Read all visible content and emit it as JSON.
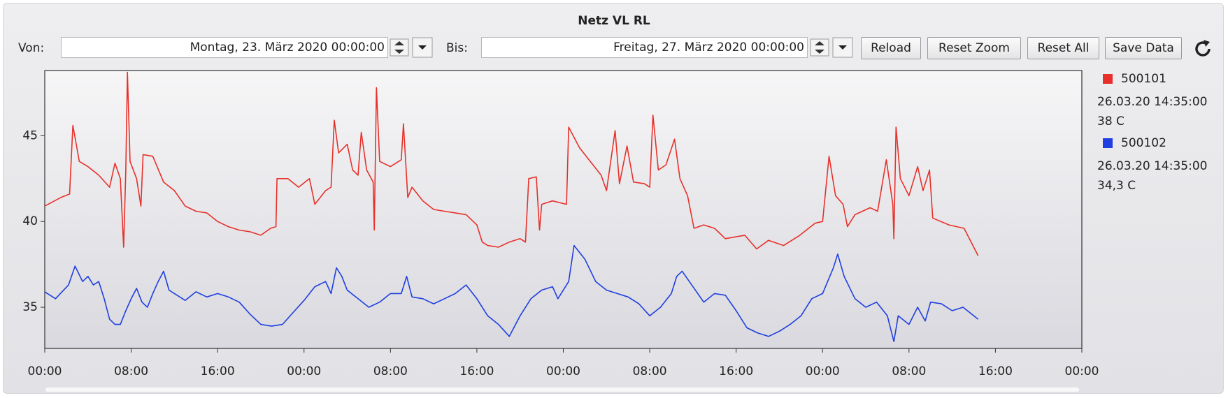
{
  "chart_data": {
    "type": "line",
    "title": "Netz VL RL",
    "xlim": [
      0,
      96
    ],
    "xticks": [
      {
        "value": 0,
        "label": "00:00"
      },
      {
        "value": 8,
        "label": "08:00"
      },
      {
        "value": 16,
        "label": "16:00"
      },
      {
        "value": 24,
        "label": "00:00"
      },
      {
        "value": 32,
        "label": "08:00"
      },
      {
        "value": 40,
        "label": "16:00"
      },
      {
        "value": 48,
        "label": "00:00"
      },
      {
        "value": 56,
        "label": "08:00"
      },
      {
        "value": 64,
        "label": "16:00"
      },
      {
        "value": 72,
        "label": "00:00"
      },
      {
        "value": 80,
        "label": "08:00"
      },
      {
        "value": 88,
        "label": "16:00"
      },
      {
        "value": 96,
        "label": "00:00"
      }
    ],
    "ylim": [
      32.6,
      48.8
    ],
    "yticks": [
      35,
      40,
      45
    ],
    "series": [
      {
        "name": "500101",
        "color": "#e8302a",
        "last_time": "26.03.20 14:35:00",
        "last_value": "38 C",
        "x": [
          0,
          1.5,
          2.3,
          2.6,
          3.2,
          4,
          5,
          6,
          6.5,
          7,
          7.3,
          7.5,
          7.65,
          7.9,
          8.5,
          8.9,
          9.1,
          10,
          11,
          12,
          13,
          14,
          15,
          16,
          17,
          18,
          19,
          20,
          20.9,
          21.4,
          21.5,
          22.5,
          23.5,
          24.5,
          25,
          26,
          26.5,
          26.8,
          27.2,
          28,
          28.5,
          29,
          29.3,
          29.8,
          30.4,
          30.5,
          30.7,
          31,
          32,
          33,
          33.2,
          33.6,
          34,
          35,
          36,
          37,
          38,
          39,
          40,
          40.5,
          41,
          42,
          43,
          44,
          44.5,
          44.8,
          45.5,
          45.8,
          46,
          47,
          48.3,
          48.5,
          49.5,
          50.5,
          51.5,
          52,
          52.8,
          53.2,
          53.9,
          54.5,
          55.5,
          56,
          56.3,
          56.8,
          57.5,
          58.3,
          58.8,
          59.5,
          60.1,
          61,
          62,
          63,
          64.8,
          65.9,
          67,
          68.4,
          69.9,
          71.3,
          72,
          72.6,
          73.2,
          73.9,
          74.3,
          75,
          76.4,
          77.1,
          77.9,
          78.5,
          78.6,
          78.8,
          79.2,
          80,
          80.8,
          81.3,
          81.9,
          82.2,
          83.7,
          85.1,
          86.4
        ],
        "values": [
          40.9,
          41.4,
          41.6,
          45.6,
          43.5,
          43.2,
          42.7,
          42.0,
          43.4,
          42.5,
          38.5,
          43.0,
          48.7,
          43.5,
          42.5,
          40.9,
          43.9,
          43.8,
          42.3,
          41.8,
          40.9,
          40.6,
          40.5,
          40.0,
          39.7,
          39.5,
          39.4,
          39.2,
          39.6,
          39.7,
          42.5,
          42.5,
          42.0,
          42.5,
          41.0,
          41.8,
          42.0,
          45.9,
          44.0,
          44.5,
          43.0,
          42.7,
          45.2,
          43.0,
          42.3,
          39.5,
          47.8,
          43.5,
          43.2,
          43.6,
          45.7,
          41.4,
          42.0,
          41.2,
          40.7,
          40.6,
          40.5,
          40.4,
          39.8,
          38.8,
          38.6,
          38.5,
          38.8,
          39.0,
          38.8,
          42.5,
          42.6,
          39.5,
          41.0,
          41.2,
          41.0,
          45.5,
          44.3,
          43.5,
          42.7,
          41.8,
          45.3,
          42.2,
          44.4,
          42.3,
          42.2,
          42.0,
          46.2,
          43.0,
          43.3,
          44.8,
          42.5,
          41.5,
          39.6,
          39.8,
          39.6,
          39.0,
          39.2,
          38.4,
          38.9,
          38.6,
          39.2,
          39.9,
          40.0,
          43.8,
          41.5,
          41.0,
          39.7,
          40.4,
          40.8,
          40.6,
          43.6,
          41.0,
          39.0,
          45.5,
          42.5,
          41.5,
          43.2,
          41.8,
          43.0,
          40.2,
          39.8,
          39.6,
          38.0
        ]
      },
      {
        "name": "500102",
        "color": "#1f3fe0",
        "last_time": "26.03.20 14:35:00",
        "last_value": "34,3 C",
        "x": [
          0,
          1,
          2.2,
          2.8,
          3.5,
          4,
          4.5,
          5,
          5.5,
          6,
          6.5,
          7,
          7.5,
          8,
          8.5,
          9,
          9.5,
          10,
          10.5,
          11,
          11.5,
          12,
          13,
          14,
          15,
          16,
          17,
          18,
          19,
          20,
          21,
          22,
          23,
          24,
          25,
          26,
          26.5,
          27,
          27.5,
          28,
          29,
          30,
          31,
          32,
          33,
          33.5,
          34,
          35,
          36,
          37,
          38,
          39,
          40,
          41,
          42,
          43,
          44,
          45,
          46,
          47,
          47.5,
          48.5,
          49,
          50,
          51,
          52,
          53,
          54,
          55,
          56,
          57,
          58,
          58.5,
          59,
          60,
          61,
          62,
          63,
          64,
          65,
          66,
          67,
          68,
          69,
          70,
          71,
          72,
          73,
          73.4,
          74,
          75,
          76,
          77,
          78,
          78.6,
          79,
          80,
          80.8,
          81.5,
          82,
          83,
          84,
          85,
          86.4
        ],
        "values": [
          35.9,
          35.5,
          36.3,
          37.4,
          36.5,
          36.8,
          36.3,
          36.5,
          35.5,
          34.3,
          34.0,
          34.0,
          34.8,
          35.5,
          36.1,
          35.3,
          35.0,
          35.8,
          36.5,
          37.1,
          36.0,
          35.8,
          35.4,
          35.9,
          35.6,
          35.8,
          35.6,
          35.3,
          34.6,
          34.0,
          33.9,
          34.0,
          34.7,
          35.4,
          36.2,
          36.5,
          35.8,
          37.3,
          36.8,
          36.0,
          35.5,
          35.0,
          35.3,
          35.8,
          35.8,
          36.8,
          35.6,
          35.5,
          35.2,
          35.5,
          35.8,
          36.3,
          35.5,
          34.5,
          34.0,
          33.3,
          34.5,
          35.5,
          36.0,
          36.2,
          35.5,
          36.5,
          38.6,
          37.8,
          36.5,
          36.0,
          35.8,
          35.6,
          35.2,
          34.5,
          35.0,
          35.8,
          36.8,
          37.1,
          36.2,
          35.3,
          35.8,
          35.7,
          34.8,
          33.8,
          33.5,
          33.3,
          33.6,
          34.0,
          34.5,
          35.5,
          35.8,
          37.3,
          38.1,
          36.8,
          35.5,
          35.0,
          35.3,
          34.5,
          33.0,
          34.5,
          34.0,
          35.0,
          34.2,
          35.3,
          35.2,
          34.8,
          35.0,
          34.3
        ]
      }
    ]
  },
  "controls": {
    "from_label": "Von:",
    "from_value": "Montag, 23. März 2020 00:00:00",
    "to_label": "Bis:",
    "to_value": "Freitag, 27. März 2020 00:00:00",
    "buttons": [
      "Reload",
      "Reset Zoom",
      "Reset All",
      "Save Data"
    ]
  }
}
